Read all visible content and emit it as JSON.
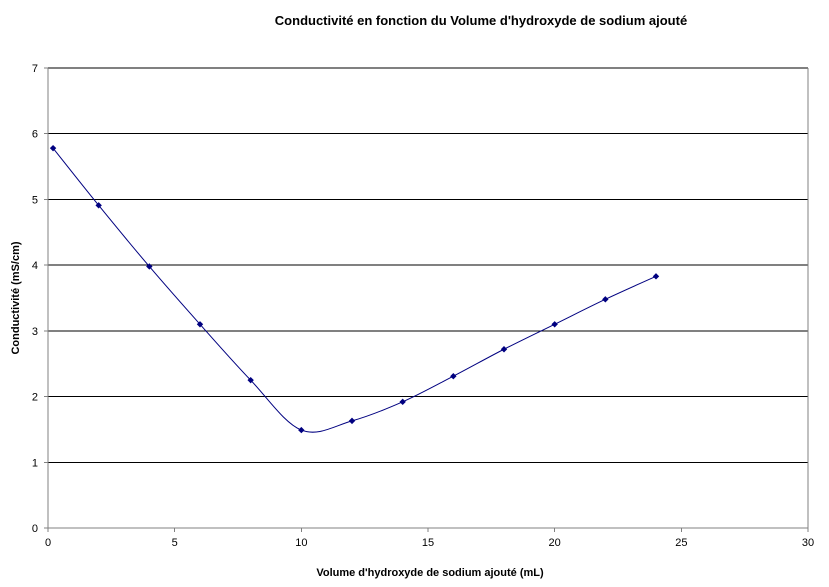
{
  "chart_data": {
    "type": "line",
    "title": "Conductivité en fonction du Volume d'hydroxyde de sodium ajouté",
    "xlabel": "Volume d'hydroxyde de sodium ajouté (mL)",
    "ylabel": "Conductivité (mS/cm)",
    "xlim": [
      0,
      30
    ],
    "ylim": [
      0,
      7
    ],
    "xticks": [
      0,
      5,
      10,
      15,
      20,
      25,
      30
    ],
    "yticks": [
      0,
      1,
      2,
      3,
      4,
      5,
      6,
      7
    ],
    "grid": "horizontal",
    "legend": "none",
    "series": [
      {
        "x": [
          0.2,
          2,
          4,
          6,
          8,
          10,
          12,
          14,
          16,
          18,
          20,
          22,
          24
        ],
        "y": [
          5.78,
          4.91,
          3.98,
          3.1,
          2.25,
          1.49,
          1.63,
          1.92,
          2.31,
          2.72,
          3.1,
          3.48,
          3.83
        ],
        "color": "#000080",
        "marker": "diamond",
        "line": "smooth"
      }
    ]
  }
}
